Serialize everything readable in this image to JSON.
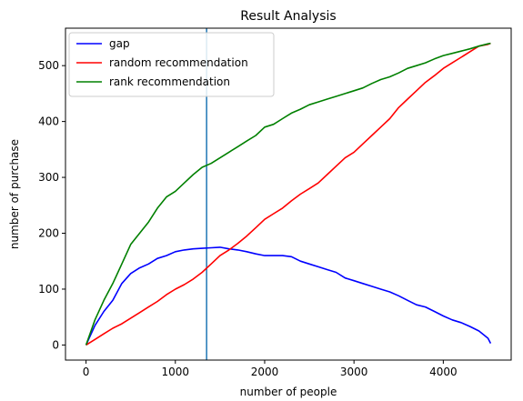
{
  "chart_data": {
    "type": "line",
    "title": "Result Analysis",
    "xlabel": "number of people",
    "ylabel": "number of purchase",
    "xlim": [
      -230,
      4760
    ],
    "ylim": [
      -27,
      567
    ],
    "xticks": [
      0,
      1000,
      2000,
      3000,
      4000
    ],
    "yticks": [
      0,
      100,
      200,
      300,
      400,
      500
    ],
    "grid": false,
    "legend_position": "top-left",
    "vline": {
      "x": 1350,
      "color": "#1f77b4"
    },
    "series": [
      {
        "name": "gap",
        "color": "#0000ff",
        "x": [
          0,
          100,
          200,
          300,
          400,
          500,
          600,
          700,
          800,
          900,
          1000,
          1100,
          1200,
          1300,
          1400,
          1500,
          1600,
          1700,
          1800,
          1900,
          2000,
          2100,
          2200,
          2300,
          2400,
          2500,
          2600,
          2700,
          2800,
          2900,
          3000,
          3100,
          3200,
          3300,
          3400,
          3500,
          3600,
          3700,
          3800,
          3900,
          4000,
          4100,
          4200,
          4300,
          4400,
          4500,
          4530
        ],
        "y": [
          0,
          35,
          60,
          80,
          110,
          128,
          138,
          145,
          155,
          160,
          167,
          170,
          172,
          173,
          174,
          175,
          172,
          170,
          167,
          163,
          160,
          160,
          160,
          158,
          150,
          145,
          140,
          135,
          130,
          120,
          115,
          110,
          105,
          100,
          95,
          88,
          80,
          72,
          68,
          60,
          52,
          45,
          40,
          33,
          25,
          12,
          3
        ]
      },
      {
        "name": "random recommendation",
        "color": "#ff0000",
        "x": [
          0,
          100,
          200,
          300,
          400,
          500,
          600,
          700,
          800,
          900,
          1000,
          1100,
          1200,
          1300,
          1400,
          1500,
          1600,
          1700,
          1800,
          1900,
          2000,
          2100,
          2200,
          2300,
          2400,
          2500,
          2600,
          2700,
          2800,
          2900,
          3000,
          3100,
          3200,
          3300,
          3400,
          3500,
          3600,
          3700,
          3800,
          3900,
          4000,
          4100,
          4200,
          4300,
          4400,
          4500,
          4530
        ],
        "y": [
          0,
          10,
          20,
          30,
          38,
          48,
          58,
          68,
          78,
          90,
          100,
          108,
          118,
          130,
          145,
          160,
          170,
          182,
          195,
          210,
          225,
          235,
          245,
          258,
          270,
          280,
          290,
          305,
          320,
          335,
          345,
          360,
          375,
          390,
          405,
          425,
          440,
          455,
          470,
          482,
          495,
          505,
          515,
          525,
          535,
          538,
          540
        ]
      },
      {
        "name": "rank recommendation",
        "color": "#008000",
        "x": [
          0,
          100,
          200,
          300,
          400,
          500,
          600,
          700,
          800,
          900,
          1000,
          1100,
          1200,
          1300,
          1400,
          1500,
          1600,
          1700,
          1800,
          1900,
          2000,
          2100,
          2200,
          2300,
          2400,
          2500,
          2600,
          2700,
          2800,
          2900,
          3000,
          3100,
          3200,
          3300,
          3400,
          3500,
          3600,
          3700,
          3800,
          3900,
          4000,
          4100,
          4200,
          4300,
          4400,
          4500,
          4530
        ],
        "y": [
          0,
          45,
          80,
          110,
          145,
          180,
          200,
          220,
          245,
          265,
          275,
          290,
          305,
          318,
          325,
          335,
          345,
          355,
          365,
          375,
          390,
          395,
          405,
          415,
          422,
          430,
          435,
          440,
          445,
          450,
          455,
          460,
          468,
          475,
          480,
          487,
          495,
          500,
          505,
          512,
          518,
          522,
          526,
          530,
          535,
          539,
          540
        ]
      }
    ]
  }
}
